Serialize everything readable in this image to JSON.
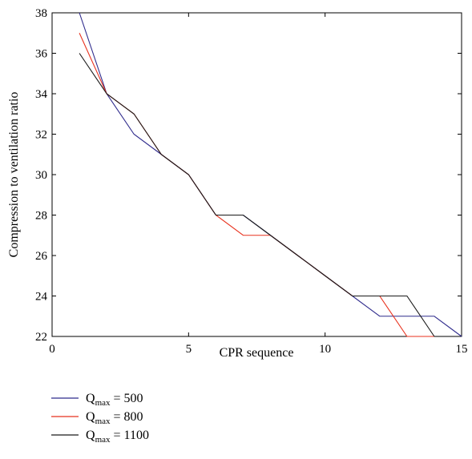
{
  "chart_data": {
    "type": "line",
    "xlabel": "CPR sequence",
    "ylabel": "Compression to ventilation ratio",
    "xlim": [
      0,
      15
    ],
    "ylim": [
      22,
      38
    ],
    "xticks": [
      0,
      5,
      10,
      15
    ],
    "yticks": [
      22,
      24,
      26,
      28,
      30,
      32,
      34,
      36,
      38
    ],
    "grid": false,
    "legend_position": "bottom-left",
    "series": [
      {
        "legend_main": "Q",
        "legend_sub": "max",
        "legend_value": " = 500",
        "color": "#2f2b8c",
        "x": [
          1,
          2,
          3,
          4,
          5,
          6,
          7,
          8,
          9,
          10,
          11,
          12,
          13,
          14,
          15
        ],
        "y": [
          38,
          34,
          32,
          31,
          30,
          28,
          28,
          27,
          26,
          25,
          24,
          23,
          23,
          23,
          22
        ]
      },
      {
        "legend_main": "Q",
        "legend_sub": "max",
        "legend_value": " = 800",
        "color": "#e8321e",
        "x": [
          1,
          2,
          3,
          4,
          5,
          6,
          7,
          8,
          9,
          10,
          11,
          12,
          13,
          14
        ],
        "y": [
          37,
          34,
          33,
          31,
          30,
          28,
          27,
          27,
          26,
          25,
          24,
          24,
          22,
          22
        ]
      },
      {
        "legend_main": "Q",
        "legend_sub": "max",
        "legend_value": " = 1100",
        "color": "#1a1a1a",
        "x": [
          1,
          2,
          3,
          4,
          5,
          6,
          7,
          8,
          9,
          10,
          11,
          12,
          13,
          14
        ],
        "y": [
          36,
          34,
          33,
          31,
          30,
          28,
          28,
          27,
          26,
          25,
          24,
          24,
          24,
          22
        ]
      }
    ]
  }
}
